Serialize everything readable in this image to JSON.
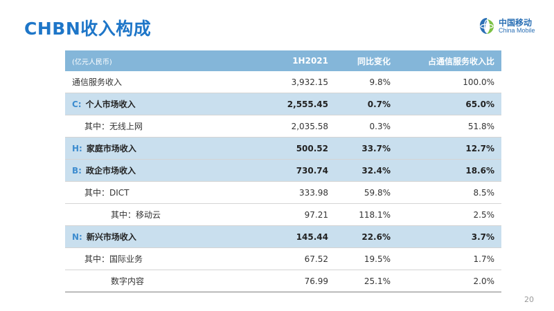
{
  "title": "CHBN收入构成",
  "logo": {
    "name_zh": "中国移动",
    "name_en": "China Mobile",
    "color": "#2a6fb5"
  },
  "table": {
    "headers": [
      "(亿元人民币)",
      "1H2021",
      "同比变化",
      "占通信服务收入比"
    ],
    "rows": [
      {
        "label": "通信服务收入",
        "prefix": "",
        "value": "3,932.15",
        "yoy": "9.8%",
        "share": "100.0%"
      },
      {
        "label": "个人市场收入",
        "prefix": "C:",
        "value": "2,555.45",
        "yoy": "0.7%",
        "share": "65.0%"
      },
      {
        "label": "其中：无线上网",
        "prefix": "",
        "value": "2,035.58",
        "yoy": "0.3%",
        "share": "51.8%"
      },
      {
        "label": "家庭市场收入",
        "prefix": "H:",
        "value": "500.52",
        "yoy": "33.7%",
        "share": "12.7%"
      },
      {
        "label": "政企市场收入",
        "prefix": "B:",
        "value": "730.74",
        "yoy": "32.4%",
        "share": "18.6%"
      },
      {
        "label": "其中：DICT",
        "prefix": "",
        "value": "333.98",
        "yoy": "59.8%",
        "share": "8.5%"
      },
      {
        "label": "其中：移动云",
        "prefix": "",
        "value": "97.21",
        "yoy": "118.1%",
        "share": "2.5%"
      },
      {
        "label": "新兴市场收入",
        "prefix": "N:",
        "value": "145.44",
        "yoy": "22.6%",
        "share": "3.7%"
      },
      {
        "label": "其中：国际业务",
        "prefix": "",
        "value": "67.52",
        "yoy": "19.5%",
        "share": "1.7%"
      },
      {
        "label": "数字内容",
        "prefix": "",
        "value": "76.99",
        "yoy": "25.1%",
        "share": "2.0%"
      }
    ]
  },
  "page_number": "20",
  "colors": {
    "title": "#1e76c8",
    "header_bg": "#84b6d9",
    "highlight_bg": "#c9dfee",
    "prefix": "#3d8ccf"
  }
}
